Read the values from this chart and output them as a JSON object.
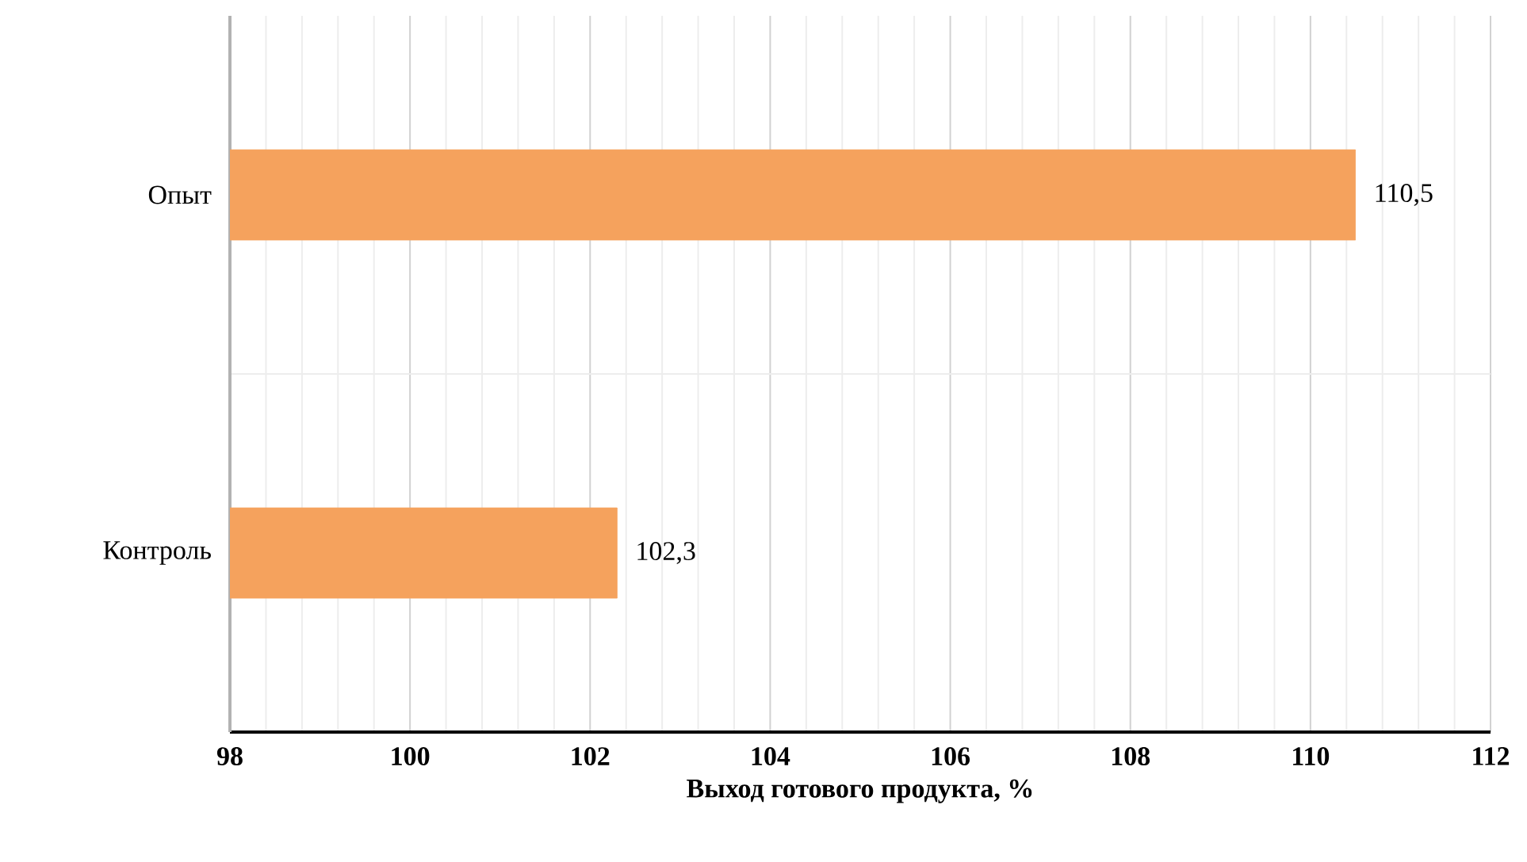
{
  "chart_data": {
    "type": "bar",
    "orientation": "horizontal",
    "xlabel": "Выход готового продукта, %",
    "categories": [
      "Опыт",
      "Контроль"
    ],
    "values": [
      110.5,
      102.3
    ],
    "color": "#f5a25d",
    "xlim": [
      98,
      112
    ],
    "xticks": [
      98,
      100,
      102,
      104,
      106,
      108,
      110,
      112
    ],
    "grid": true,
    "value_labels": [
      "110,5",
      "102,3"
    ]
  }
}
